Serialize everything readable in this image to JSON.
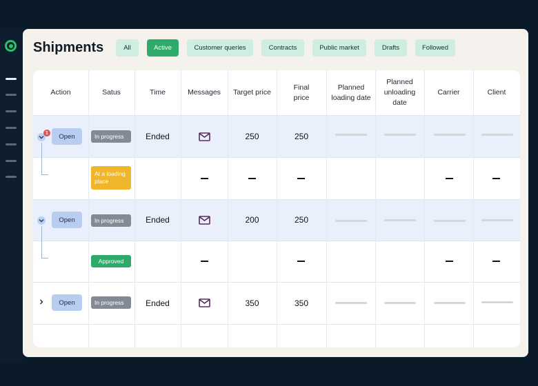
{
  "title": "Shipments",
  "filters": [
    {
      "label": "All",
      "active": false
    },
    {
      "label": "Active",
      "active": true
    },
    {
      "label": "Customer queries",
      "active": false
    },
    {
      "label": "Contracts",
      "active": false
    },
    {
      "label": "Public market",
      "active": false
    },
    {
      "label": "Drafts",
      "active": false
    },
    {
      "label": "Followed",
      "active": false
    }
  ],
  "columns": {
    "action": "Action",
    "status": "Satus",
    "time": "Time",
    "messages": "Messages",
    "target_price": "Target price",
    "final_price": "Final price",
    "planned_loading": "Planned loading date",
    "planned_unloading": "Planned unloading date",
    "carrier": "Carrier",
    "client": "Client"
  },
  "rows": [
    {
      "action": "Open",
      "notification": "1",
      "status": "In progress",
      "time": "Ended",
      "target_price": "250",
      "final_price": "250"
    },
    {
      "status": "At a loading place"
    },
    {
      "action": "Open",
      "status": "In progress",
      "time": "Ended",
      "target_price": "200",
      "final_price": "250"
    },
    {
      "status": "Approved"
    },
    {
      "action": "Open",
      "status": "In progress",
      "time": "Ended",
      "target_price": "350",
      "final_price": "350"
    }
  ],
  "colors": {
    "accent": "#2eab6a",
    "chip": "#cfeee2",
    "highlight_row": "#e9f0fb",
    "warning": "#f0b62b",
    "badge_gray": "#838a95"
  }
}
